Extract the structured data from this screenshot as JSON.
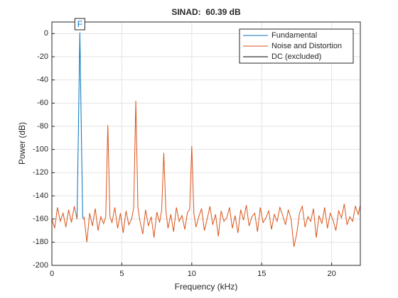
{
  "chart_data": {
    "type": "line",
    "title": "SINAD:  60.39 dB",
    "xlabel": "Frequency (kHz)",
    "ylabel": "Power (dB)",
    "xlim": [
      0,
      22.05
    ],
    "ylim": [
      -200,
      10
    ],
    "xticks": [
      0,
      5,
      10,
      15,
      20
    ],
    "yticks": [
      0,
      -20,
      -40,
      -60,
      -80,
      -100,
      -120,
      -140,
      -160,
      -180,
      -200
    ],
    "grid": true,
    "legend": "upper right",
    "annotations": [
      {
        "text": "F",
        "x": 2
      }
    ],
    "series": [
      {
        "name": "Fundamental",
        "color": "#0072BD",
        "x": [
          1.8,
          1.9,
          2.0,
          2.1,
          2.2,
          2.25
        ],
        "values": [
          -160,
          -80,
          1,
          -80,
          -158,
          -160
        ]
      },
      {
        "name": "Noise and Distortion",
        "color": "#D95319",
        "x": [
          0,
          0.2,
          0.4,
          0.6,
          0.8,
          1.0,
          1.2,
          1.4,
          1.6,
          1.8,
          2.0,
          2.3,
          2.5,
          2.7,
          2.9,
          3.1,
          3.3,
          3.5,
          3.7,
          3.85,
          4.0,
          4.15,
          4.3,
          4.5,
          4.7,
          4.9,
          5.1,
          5.3,
          5.5,
          5.7,
          5.85,
          6.0,
          6.15,
          6.3,
          6.5,
          6.7,
          6.9,
          7.1,
          7.3,
          7.5,
          7.7,
          7.85,
          8.0,
          8.15,
          8.3,
          8.5,
          8.7,
          8.9,
          9.1,
          9.3,
          9.5,
          9.7,
          9.85,
          10.0,
          10.15,
          10.3,
          10.5,
          10.7,
          10.9,
          11.1,
          11.3,
          11.5,
          11.7,
          11.9,
          12.1,
          12.3,
          12.5,
          12.7,
          12.9,
          13.1,
          13.3,
          13.5,
          13.7,
          13.9,
          14.1,
          14.3,
          14.5,
          14.7,
          14.9,
          15.1,
          15.3,
          15.5,
          15.7,
          15.9,
          16.1,
          16.3,
          16.5,
          16.7,
          16.9,
          17.1,
          17.3,
          17.5,
          17.7,
          17.9,
          18.1,
          18.3,
          18.5,
          18.7,
          18.9,
          19.1,
          19.3,
          19.5,
          19.7,
          19.9,
          20.1,
          20.3,
          20.5,
          20.7,
          20.9,
          21.1,
          21.3,
          21.5,
          21.7,
          21.9,
          22.05
        ],
        "values": [
          -160,
          -168,
          -150,
          -162,
          -155,
          -167,
          -152,
          -163,
          -149,
          -160,
          null,
          -158,
          -180,
          -155,
          -166,
          -151,
          -170,
          -158,
          -164,
          -158,
          -79,
          -158,
          -163,
          -150,
          -168,
          -155,
          -172,
          -153,
          -165,
          -160,
          -150,
          -58,
          -150,
          -162,
          -173,
          -152,
          -166,
          -158,
          -176,
          -154,
          -163,
          -152,
          -103,
          -153,
          -168,
          -156,
          -171,
          -150,
          -162,
          -157,
          -169,
          -154,
          -152,
          -97,
          -155,
          -167,
          -158,
          -151,
          -170,
          -160,
          -149,
          -165,
          -156,
          -175,
          -153,
          -162,
          -159,
          -150,
          -168,
          -157,
          -172,
          -152,
          -161,
          -148,
          -166,
          -158,
          -155,
          -171,
          -150,
          -163,
          -159,
          -153,
          -169,
          -156,
          -162,
          -150,
          -157,
          -165,
          -152,
          -160,
          -184,
          -173,
          -155,
          -149,
          -167,
          -158,
          -162,
          -151,
          -176,
          -157,
          -164,
          -150,
          -168,
          -155,
          -161,
          -170,
          -153,
          -159,
          -147,
          -165,
          -158,
          -162,
          -149,
          -156,
          -148
        ]
      },
      {
        "name": "DC (excluded)",
        "color": "#000000",
        "x": [],
        "values": []
      }
    ]
  }
}
